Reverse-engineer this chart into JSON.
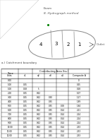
{
  "title_top": "Exam",
  "title_sub": "8. Hydrograph method",
  "catchment_label": "a.) Catchment boundary",
  "outlet_label": "Outlet",
  "table_header1": "Time",
  "table_header2": "Contributing Area (ha.)",
  "col_headers": [
    "Units",
    "a1",
    "a2",
    "a3",
    "a4",
    "Composite A"
  ],
  "table_data": [
    [
      "0:00",
      "",
      "",
      "",
      "",
      "0"
    ],
    [
      "1:00",
      "0.25",
      "",
      "",
      "",
      "0.25"
    ],
    [
      "1:00",
      "0.18",
      "5",
      "",
      "",
      "0.18"
    ],
    [
      "2:00",
      "0.25",
      "0.62",
      "",
      "",
      "1.07"
    ],
    [
      "3:00",
      "0.25",
      "0.62",
      "0.30",
      "",
      "1.27"
    ],
    [
      "4:00",
      "0.25",
      "0.62",
      "0.35",
      "",
      "1.89"
    ],
    [
      "5:00",
      "0.25",
      "0.62",
      "0.35",
      "0.08",
      "1.84"
    ],
    [
      "6:00",
      "0.25",
      "0.62",
      "0.35",
      "0.14",
      "2.11"
    ],
    [
      "7:00",
      "0.25",
      "0.62",
      "0.35",
      "0.14",
      "2.14"
    ],
    [
      "8:00",
      "0.25",
      "0.62",
      "0.35",
      "0.14",
      "2.14"
    ],
    [
      "9:00",
      "0.25",
      "0.62",
      "0.35",
      "0.14",
      "2.14"
    ],
    [
      "10:00",
      "0.25",
      "0.62",
      "0.35",
      "0.14",
      "2.33"
    ],
    [
      "11:00",
      "0.25",
      "0.62",
      "0.35",
      "0.14",
      "2.33"
    ],
    [
      "12:00",
      "0.25",
      "0.62",
      "0.35",
      "0.14",
      "2.33"
    ]
  ],
  "background": "#ffffff",
  "fig_w": 1.49,
  "fig_h": 1.98,
  "dpi": 100
}
